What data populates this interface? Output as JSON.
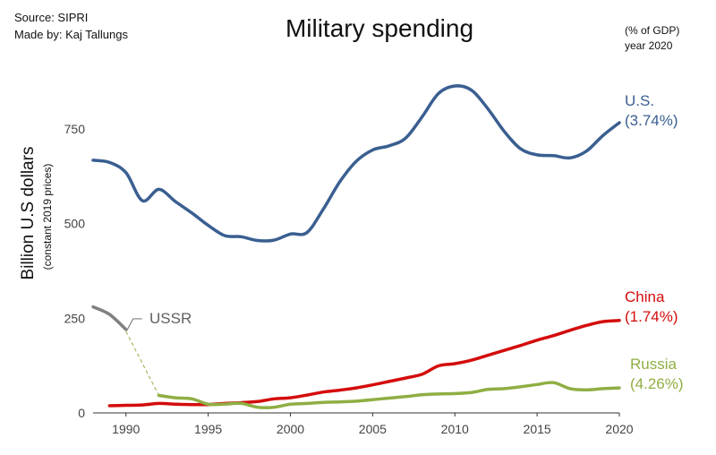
{
  "header": {
    "source": "Source: SIPRI",
    "made_by": "Made by: Kaj Tallungs",
    "title": "Military spending",
    "note_line1": "(% of GDP)",
    "note_line2": "year 2020"
  },
  "chart_data": {
    "type": "line",
    "title": "Military spending",
    "ylabel": "Billion U.S dollars",
    "ylabel_sub": "(constant 2019 prices)",
    "xlim": [
      1988,
      2020
    ],
    "ylim": [
      0,
      1000
    ],
    "x_ticks": [
      1990,
      1995,
      2000,
      2005,
      2010,
      2015,
      2020
    ],
    "y_ticks": [
      0,
      250,
      500,
      750
    ],
    "grid": false,
    "series": [
      {
        "name": "U.S.",
        "end_label_line1": "U.S.",
        "end_label_line2": "(3.74%)",
        "color": "#3a5f91",
        "x": [
          1988,
          1989,
          1990,
          1991,
          1992,
          1993,
          1994,
          1995,
          1996,
          1997,
          1998,
          1999,
          2000,
          2001,
          2002,
          2003,
          2004,
          2005,
          2006,
          2007,
          2008,
          2009,
          2010,
          2011,
          2012,
          2013,
          2014,
          2015,
          2016,
          2017,
          2018,
          2019,
          2020
        ],
        "y": [
          667,
          661,
          634,
          560,
          590,
          558,
          528,
          495,
          468,
          465,
          455,
          456,
          472,
          476,
          538,
          610,
          664,
          694,
          705,
          725,
          781,
          843,
          863,
          852,
          803,
          743,
          697,
          681,
          679,
          673,
          691,
          732,
          766
        ]
      },
      {
        "name": "China",
        "end_label_line1": "China",
        "end_label_line2": "(1.74%)",
        "color": "#d40c0c",
        "x": [
          1989,
          1990,
          1991,
          1992,
          1993,
          1994,
          1995,
          1996,
          1997,
          1998,
          1999,
          2000,
          2001,
          2002,
          2003,
          2004,
          2005,
          2006,
          2007,
          2008,
          2009,
          2010,
          2011,
          2012,
          2013,
          2014,
          2015,
          2016,
          2017,
          2018,
          2019,
          2020
        ],
        "y": [
          19,
          20,
          21,
          25,
          23,
          22,
          22,
          25,
          27,
          30,
          37,
          40,
          47,
          55,
          60,
          66,
          74,
          83,
          92,
          102,
          124,
          130,
          139,
          152,
          165,
          178,
          192,
          204,
          218,
          231,
          241,
          244
        ]
      },
      {
        "name": "Russia",
        "end_label_line1": "Russia",
        "end_label_line2": "(4.26%)",
        "color": "#8fae43",
        "x": [
          1992,
          1993,
          1994,
          1995,
          1996,
          1997,
          1998,
          1999,
          2000,
          2001,
          2002,
          2003,
          2004,
          2005,
          2006,
          2007,
          2008,
          2009,
          2010,
          2011,
          2012,
          2013,
          2014,
          2015,
          2016,
          2017,
          2018,
          2019,
          2020
        ],
        "y": [
          46,
          40,
          37,
          23,
          23,
          25,
          15,
          15,
          23,
          25,
          28,
          29,
          31,
          35,
          39,
          43,
          48,
          50,
          51,
          54,
          62,
          64,
          69,
          75,
          80,
          64,
          61,
          64,
          66
        ]
      },
      {
        "name": "USSR",
        "end_label_line1": "USSR",
        "color": "#808080",
        "x": [
          1988,
          1989,
          1990
        ],
        "y": [
          280,
          260,
          220
        ]
      }
    ]
  }
}
